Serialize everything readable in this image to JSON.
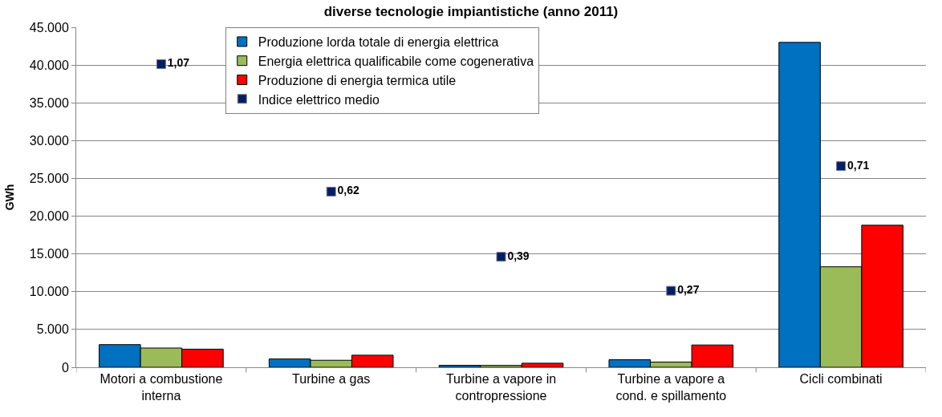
{
  "chart_data": {
    "type": "bar",
    "title": "diverse tecnologie impiantistiche (anno 2011)",
    "ylabel": "GWh",
    "categories": [
      "Motori a combustione interna",
      "Turbine a gas",
      "Turbine a vapore in contropressione",
      "Turbine a vapore a cond. e spillamento",
      "Cicli combinati"
    ],
    "series": [
      {
        "name": "Produzione lorda totale di energia elettrica",
        "color": "#0070c0",
        "values": [
          3000,
          1100,
          260,
          1000,
          43000
        ]
      },
      {
        "name": "Energia elettrica qualificabile come cogenerativa",
        "color": "#9bbb59",
        "values": [
          2550,
          930,
          250,
          690,
          13300
        ]
      },
      {
        "name": "Produzione di energia termica utile",
        "color": "#ff0000",
        "values": [
          2400,
          1600,
          540,
          2950,
          18800
        ]
      },
      {
        "name": "Indice elettrico medio",
        "type": "scatter",
        "axis": "y2",
        "color": "#002060",
        "marker": "square",
        "values": [
          1.07,
          0.62,
          0.39,
          0.27,
          0.71
        ],
        "value_labels": [
          "1,07",
          "0,62",
          "0,39",
          "0,27",
          "0,71"
        ]
      }
    ],
    "ylim": [
      0,
      45000
    ],
    "yticks": [
      {
        "value": 0,
        "label": "0"
      },
      {
        "value": 5000,
        "label": "5.000"
      },
      {
        "value": 10000,
        "label": "10.000"
      },
      {
        "value": 15000,
        "label": "15.000"
      },
      {
        "value": 20000,
        "label": "20.000"
      },
      {
        "value": 25000,
        "label": "25.000"
      },
      {
        "value": 30000,
        "label": "30.000"
      },
      {
        "value": 35000,
        "label": "35.000"
      },
      {
        "value": 40000,
        "label": "40.000"
      },
      {
        "value": 45000,
        "label": "45.000"
      }
    ],
    "y2lim": [
      0,
      1.2
    ],
    "tick_labels": "xy",
    "grid": "y",
    "legend": "top"
  }
}
